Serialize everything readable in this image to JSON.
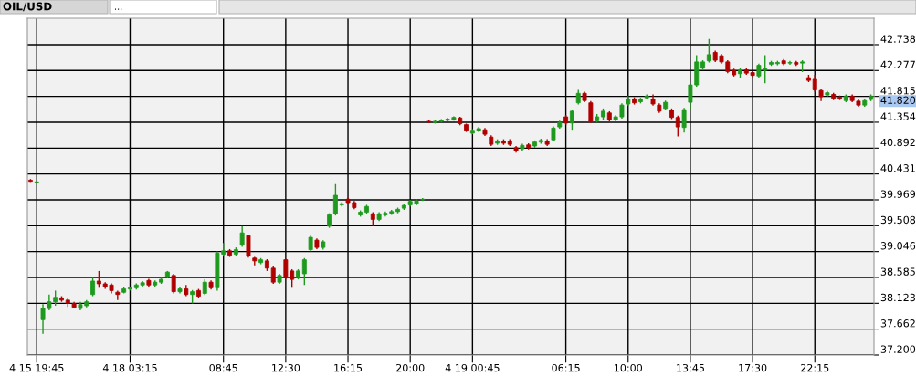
{
  "chart_data": {
    "type": "candlestick",
    "title": "OIL/USD",
    "categories": [
      null,
      "4 15 19:45",
      null,
      null,
      null,
      null,
      null,
      null,
      null,
      null,
      null,
      null,
      null,
      null,
      null,
      null,
      "4 18 03:15",
      null,
      null,
      null,
      null,
      null,
      null,
      null,
      null,
      null,
      null,
      null,
      null,
      null,
      null,
      "08:45",
      null,
      null,
      null,
      null,
      null,
      null,
      null,
      null,
      null,
      "12:30",
      null,
      null,
      null,
      null,
      null,
      null,
      null,
      null,
      null,
      "16:15",
      null,
      null,
      null,
      null,
      null,
      null,
      null,
      null,
      null,
      "20:00",
      null,
      null,
      null,
      null,
      null,
      null,
      null,
      null,
      null,
      "4 19 00:45",
      null,
      null,
      null,
      null,
      null,
      null,
      null,
      null,
      null,
      null,
      null,
      null,
      null,
      null,
      "06:15",
      null,
      null,
      null,
      null,
      null,
      null,
      null,
      null,
      null,
      "10:00",
      null,
      null,
      null,
      null,
      null,
      null,
      null,
      null,
      null,
      "13:45",
      null,
      null,
      null,
      null,
      null,
      null,
      null,
      null,
      null,
      "17:30",
      null,
      null,
      null,
      null,
      null,
      null,
      null,
      null,
      null,
      "22:15",
      null,
      null,
      null,
      null,
      null,
      null,
      null,
      null,
      null
    ],
    "colors": [
      "#b00000",
      "#1e9a1e",
      "#1e9a1e",
      "#1e9a1e",
      "#1e9a1e",
      "#b00000",
      "#b00000",
      "#b00000",
      "#1e9a1e",
      "#1e9a1e",
      "#1e9a1e",
      "#b00000",
      "#b00000",
      "#b00000",
      "#b00000",
      "#1e9a1e",
      "#1e9a1e",
      "#1e9a1e",
      "#1e9a1e",
      "#b00000",
      "#1e9a1e",
      "#1e9a1e",
      "#1e9a1e",
      "#b00000",
      "#1e9a1e",
      "#b00000",
      "#1e9a1e",
      "#b00000",
      "#1e9a1e",
      "#b00000",
      "#1e9a1e",
      "#1e9a1e",
      "#b00000",
      "#1e9a1e",
      "#1e9a1e",
      "#b00000",
      "#b00000",
      "#1e9a1e",
      "#b00000",
      "#b00000",
      "#1e9a1e",
      "#b00000",
      "#b00000",
      "#1e9a1e",
      "#1e9a1e",
      "#1e9a1e",
      "#b00000",
      "#1e9a1e",
      "#1e9a1e",
      "#1e9a1e",
      "#1e9a1e",
      "#b00000",
      "#b00000",
      "#1e9a1e",
      "#1e9a1e",
      "#b00000",
      "#1e9a1e",
      "#1e9a1e",
      "#1e9a1e",
      "#1e9a1e",
      "#1e9a1e",
      "#1e9a1e",
      "#1e9a1e",
      "#1e9a1e",
      "#b00000",
      "#1e9a1e",
      "#1e9a1e",
      "#1e9a1e",
      "#1e9a1e",
      "#b00000",
      "#b00000",
      "#1e9a1e",
      "#1e9a1e",
      "#b00000",
      "#b00000",
      "#1e9a1e",
      "#b00000",
      "#b00000",
      "#b00000",
      "#1e9a1e",
      "#b00000",
      "#1e9a1e",
      "#1e9a1e",
      "#b00000",
      "#1e9a1e",
      "#1e9a1e",
      "#b00000",
      "#1e9a1e",
      "#1e9a1e",
      "#b00000",
      "#b00000",
      "#1e9a1e",
      "#1e9a1e",
      "#b00000",
      "#1e9a1e",
      "#1e9a1e",
      "#1e9a1e",
      "#b00000",
      "#1e9a1e",
      "#1e9a1e",
      "#b00000",
      "#b00000",
      "#1e9a1e",
      "#b00000",
      "#b00000",
      "#1e9a1e",
      "#1e9a1e",
      "#1e9a1e",
      "#1e9a1e",
      "#1e9a1e",
      "#b00000",
      "#b00000",
      "#b00000",
      "#b00000",
      "#1e9a1e",
      "#b00000",
      "#b00000",
      "#1e9a1e",
      "#1e9a1e",
      "#1e9a1e",
      "#1e9a1e",
      "#b00000",
      "#1e9a1e",
      "#b00000",
      "#1e9a1e",
      "#b00000",
      "#b00000",
      "#b00000",
      "#1e9a1e",
      "#b00000",
      "#b00000",
      "#1e9a1e",
      "#b00000",
      "#b00000",
      "#1e9a1e",
      "#1e9a1e"
    ],
    "ohlc": [
      [
        40.32,
        40.34,
        40.29,
        40.3
      ],
      [
        40.28,
        40.3,
        40.27,
        40.29
      ],
      [
        37.83,
        38.11,
        37.58,
        38.03
      ],
      [
        38.03,
        38.28,
        38.0,
        38.15
      ],
      [
        38.15,
        38.35,
        38.08,
        38.23
      ],
      [
        38.22,
        38.25,
        38.15,
        38.18
      ],
      [
        38.18,
        38.22,
        38.06,
        38.12
      ],
      [
        38.12,
        38.15,
        38.03,
        38.05
      ],
      [
        38.03,
        38.15,
        38.0,
        38.1
      ],
      [
        38.08,
        38.18,
        38.05,
        38.15
      ],
      [
        38.28,
        38.58,
        38.25,
        38.52
      ],
      [
        38.52,
        38.7,
        38.4,
        38.47
      ],
      [
        38.47,
        38.5,
        38.38,
        38.42
      ],
      [
        38.45,
        38.48,
        38.3,
        38.35
      ],
      [
        38.32,
        38.35,
        38.18,
        38.28
      ],
      [
        38.32,
        38.42,
        38.3,
        38.38
      ],
      [
        38.38,
        38.42,
        38.35,
        38.4
      ],
      [
        38.4,
        38.48,
        38.37,
        38.45
      ],
      [
        38.45,
        38.52,
        38.42,
        38.49
      ],
      [
        38.53,
        38.56,
        38.42,
        38.45
      ],
      [
        38.45,
        38.53,
        38.42,
        38.5
      ],
      [
        38.5,
        38.58,
        38.47,
        38.55
      ],
      [
        38.6,
        38.7,
        38.57,
        38.68
      ],
      [
        38.62,
        38.65,
        38.3,
        38.33
      ],
      [
        38.33,
        38.42,
        38.3,
        38.38
      ],
      [
        38.38,
        38.45,
        38.25,
        38.28
      ],
      [
        38.28,
        38.36,
        38.12,
        38.33
      ],
      [
        38.35,
        38.38,
        38.22,
        38.25
      ],
      [
        38.3,
        38.55,
        38.27,
        38.5
      ],
      [
        38.5,
        38.53,
        38.37,
        38.4
      ],
      [
        38.4,
        39.05,
        38.35,
        39.02
      ],
      [
        39.0,
        39.2,
        38.97,
        39.06
      ],
      [
        39.06,
        39.09,
        38.95,
        38.98
      ],
      [
        39.0,
        39.12,
        38.97,
        39.08
      ],
      [
        39.16,
        39.5,
        39.13,
        39.38
      ],
      [
        39.33,
        39.35,
        38.94,
        38.97
      ],
      [
        38.93,
        38.95,
        38.8,
        38.88
      ],
      [
        38.85,
        38.93,
        38.82,
        38.9
      ],
      [
        38.88,
        38.91,
        38.7,
        38.75
      ],
      [
        38.75,
        38.78,
        38.47,
        38.5
      ],
      [
        38.5,
        38.65,
        38.47,
        38.62
      ],
      [
        38.9,
        38.92,
        38.55,
        38.58
      ],
      [
        38.7,
        38.73,
        38.4,
        38.55
      ],
      [
        38.58,
        38.73,
        38.55,
        38.7
      ],
      [
        38.65,
        38.93,
        38.45,
        38.9
      ],
      [
        39.08,
        39.33,
        39.05,
        39.3
      ],
      [
        39.25,
        39.28,
        39.09,
        39.12
      ],
      [
        39.12,
        39.25,
        39.08,
        39.22
      ],
      [
        39.5,
        39.73,
        39.47,
        39.7
      ],
      [
        39.72,
        40.25,
        39.69,
        40.05
      ],
      [
        39.88,
        39.93,
        39.85,
        39.9
      ],
      [
        39.98,
        40.0,
        39.89,
        39.92
      ],
      [
        39.92,
        39.95,
        39.8,
        39.83
      ],
      [
        39.7,
        39.78,
        39.67,
        39.75
      ],
      [
        39.75,
        39.88,
        39.72,
        39.85
      ],
      [
        39.72,
        39.75,
        39.5,
        39.62
      ],
      [
        39.62,
        39.75,
        39.59,
        39.72
      ],
      [
        39.7,
        39.76,
        39.67,
        39.73
      ],
      [
        39.73,
        39.79,
        39.7,
        39.76
      ],
      [
        39.76,
        39.83,
        39.73,
        39.8
      ],
      [
        39.82,
        39.9,
        39.79,
        39.87
      ],
      [
        39.88,
        39.97,
        39.85,
        39.94
      ],
      [
        39.9,
        39.98,
        39.87,
        39.95
      ],
      [
        39.97,
        40.0,
        39.95,
        39.98
      ],
      [
        41.37,
        41.39,
        41.34,
        41.36
      ],
      [
        41.35,
        41.39,
        41.33,
        41.37
      ],
      [
        41.37,
        41.41,
        41.35,
        41.39
      ],
      [
        41.39,
        41.43,
        41.37,
        41.41
      ],
      [
        41.4,
        41.46,
        41.38,
        41.44
      ],
      [
        41.43,
        41.45,
        41.3,
        41.33
      ],
      [
        41.31,
        41.33,
        41.18,
        41.21
      ],
      [
        41.16,
        41.23,
        41.14,
        41.21
      ],
      [
        41.2,
        41.27,
        41.18,
        41.24
      ],
      [
        41.22,
        41.25,
        41.11,
        41.14
      ],
      [
        41.09,
        41.12,
        40.93,
        40.96
      ],
      [
        40.98,
        41.05,
        40.95,
        41.02
      ],
      [
        41.02,
        41.05,
        40.95,
        40.98
      ],
      [
        41.02,
        41.05,
        40.93,
        40.96
      ],
      [
        40.9,
        40.93,
        40.81,
        40.84
      ],
      [
        40.88,
        40.97,
        40.85,
        40.94
      ],
      [
        40.95,
        40.98,
        40.87,
        40.9
      ],
      [
        40.93,
        41.03,
        40.9,
        41.0
      ],
      [
        41.0,
        41.06,
        40.97,
        41.03
      ],
      [
        41.02,
        41.05,
        40.93,
        40.96
      ],
      [
        41.04,
        41.28,
        41.01,
        41.25
      ],
      [
        41.27,
        41.38,
        41.24,
        41.35
      ],
      [
        41.45,
        41.48,
        41.31,
        41.34
      ],
      [
        41.34,
        41.58,
        41.22,
        41.55
      ],
      [
        41.7,
        41.93,
        41.67,
        41.87
      ],
      [
        41.87,
        41.9,
        41.71,
        41.74
      ],
      [
        41.7,
        41.73,
        41.34,
        41.37
      ],
      [
        41.38,
        41.5,
        41.35,
        41.45
      ],
      [
        41.45,
        41.6,
        41.4,
        41.55
      ],
      [
        41.52,
        41.55,
        41.37,
        41.4
      ],
      [
        41.4,
        41.48,
        41.37,
        41.45
      ],
      [
        41.45,
        41.69,
        41.42,
        41.66
      ],
      [
        41.68,
        41.82,
        41.65,
        41.77
      ],
      [
        41.77,
        41.8,
        41.67,
        41.7
      ],
      [
        41.72,
        41.79,
        41.69,
        41.76
      ],
      [
        41.79,
        41.85,
        41.76,
        41.82
      ],
      [
        41.77,
        41.85,
        41.65,
        41.68
      ],
      [
        41.66,
        41.69,
        41.52,
        41.55
      ],
      [
        41.6,
        41.74,
        41.57,
        41.71
      ],
      [
        41.57,
        41.6,
        41.41,
        41.44
      ],
      [
        41.44,
        41.47,
        41.1,
        41.27
      ],
      [
        41.26,
        41.61,
        41.17,
        41.58
      ],
      [
        41.71,
        42.05,
        41.58,
        42.02
      ],
      [
        42.02,
        42.55,
        41.99,
        42.43
      ],
      [
        42.32,
        42.46,
        42.29,
        42.43
      ],
      [
        42.45,
        42.84,
        42.42,
        42.56
      ],
      [
        42.6,
        42.63,
        42.43,
        42.46
      ],
      [
        42.54,
        42.57,
        42.4,
        42.43
      ],
      [
        42.43,
        42.46,
        42.23,
        42.26
      ],
      [
        42.28,
        42.31,
        42.17,
        42.2
      ],
      [
        42.22,
        42.32,
        42.14,
        42.29
      ],
      [
        42.29,
        42.32,
        42.2,
        42.23
      ],
      [
        42.24,
        42.27,
        42.16,
        42.19
      ],
      [
        42.18,
        42.4,
        42.15,
        42.37
      ],
      [
        42.28,
        42.55,
        42.05,
        42.31
      ],
      [
        42.39,
        42.45,
        42.36,
        42.42
      ],
      [
        42.4,
        42.45,
        42.37,
        42.42
      ],
      [
        42.45,
        42.48,
        42.37,
        42.4
      ],
      [
        42.41,
        42.45,
        42.38,
        42.42
      ],
      [
        42.42,
        42.45,
        42.36,
        42.39
      ],
      [
        42.41,
        42.46,
        42.25,
        42.43
      ],
      [
        42.15,
        42.2,
        42.07,
        42.1
      ],
      [
        42.12,
        42.2,
        41.9,
        41.93
      ],
      [
        41.92,
        41.95,
        41.73,
        41.81
      ],
      [
        41.84,
        41.91,
        41.81,
        41.88
      ],
      [
        41.85,
        41.88,
        41.75,
        41.78
      ],
      [
        41.8,
        41.83,
        41.75,
        41.78
      ],
      [
        41.74,
        41.85,
        41.71,
        41.82
      ],
      [
        41.82,
        41.85,
        41.71,
        41.74
      ],
      [
        41.73,
        41.76,
        41.63,
        41.66
      ],
      [
        41.66,
        41.77,
        41.63,
        41.74
      ],
      [
        41.76,
        41.85,
        41.73,
        41.82
      ]
    ],
    "ylim": [
      37.2,
      43.21
    ],
    "yticks": [
      {
        "value": 37.2,
        "label": "37.200"
      },
      37.662,
      38.123,
      38.585,
      39.046,
      39.508,
      39.969,
      40.431,
      40.892,
      41.354,
      41.815,
      42.277,
      42.738
    ],
    "annotations": [
      "...",
      "41.820"
    ],
    "grid": true
  }
}
